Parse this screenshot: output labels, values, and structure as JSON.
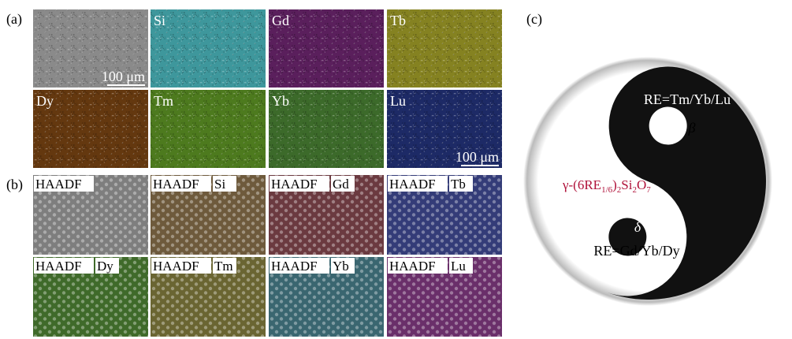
{
  "panel_a": {
    "label": "(a)",
    "scale_bar": "100 μm",
    "tiles": [
      {
        "color": "#8a8a8a"
      },
      {
        "label": "Si",
        "color": "#3e979c"
      },
      {
        "label": "Gd",
        "color": "#5a1f5c"
      },
      {
        "label": "Tb",
        "color": "#858221"
      },
      {
        "label": "Dy",
        "color": "#64380f"
      },
      {
        "label": "Tm",
        "color": "#4d7a1e"
      },
      {
        "label": "Yb",
        "color": "#3c6a2a"
      },
      {
        "label": "Lu",
        "color": "#1d2a66"
      }
    ]
  },
  "panel_b": {
    "label": "(b)",
    "prefix": "HAADF",
    "tiles": [
      {
        "color": "#7e7e7e"
      },
      {
        "label": "Si",
        "color": "#6e5a3c"
      },
      {
        "label": "Gd",
        "color": "#6b3a40"
      },
      {
        "label": "Tb",
        "color": "#343c78"
      },
      {
        "label": "Dy",
        "color": "#3f6a2a"
      },
      {
        "label": "Tm",
        "color": "#6a6532"
      },
      {
        "label": "Yb",
        "color": "#3a6670"
      },
      {
        "label": "Lu",
        "color": "#6a2f6a"
      }
    ]
  },
  "panel_c": {
    "label": "(c)",
    "top_label": "RE=Tm/Yb/Lu",
    "top_phase": "β",
    "bottom_phase": "δ",
    "bottom_label": "RE=Gd/Yb/Dy",
    "formula": [
      "γ-(6RE",
      "1/6",
      ")",
      "2",
      "Si",
      "2",
      "O",
      "7"
    ]
  }
}
